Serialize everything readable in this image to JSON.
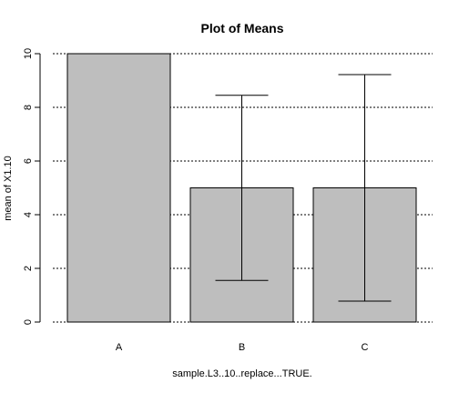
{
  "chart_data": {
    "type": "bar",
    "title": "Plot of Means",
    "xlabel": "sample.L3..10..replace...TRUE.",
    "ylabel": "mean of X1.10",
    "categories": [
      "A",
      "B",
      "C"
    ],
    "values": [
      10,
      5,
      5
    ],
    "error_bars": [
      {
        "low": 10,
        "high": 10
      },
      {
        "low": 1.55,
        "high": 8.45
      },
      {
        "low": 0.78,
        "high": 9.22
      }
    ],
    "ylim": [
      0,
      10
    ],
    "yticks": [
      "0",
      "2",
      "4",
      "6",
      "8",
      "10"
    ],
    "grid": true,
    "colors": {
      "bar": "#bebebe",
      "stroke": "#000000"
    }
  }
}
